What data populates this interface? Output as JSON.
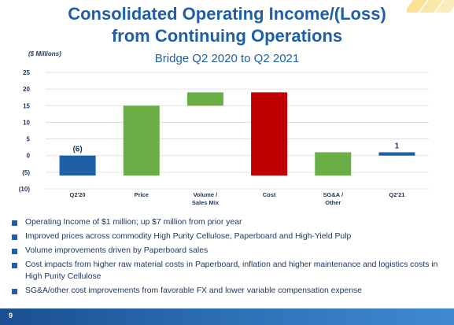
{
  "header": {
    "title_line1": "Consolidated Operating Income/(Loss)",
    "title_line2": "from Continuing Operations",
    "subtitle": "Bridge Q2 2020 to Q2 2021",
    "units": "($ Millions)"
  },
  "chart_data": {
    "type": "bar",
    "subtype": "waterfall",
    "categories": [
      "Q2'20",
      "Price",
      "Volume / Sales Mix",
      "Cost",
      "SG&A / Other",
      "Q2'21"
    ],
    "category_lines": [
      [
        "Q2'20"
      ],
      [
        "Price"
      ],
      [
        "Volume /",
        "Sales Mix"
      ],
      [
        "Cost"
      ],
      [
        "SG&A /",
        "Other"
      ],
      [
        "Q2'21"
      ]
    ],
    "bars": [
      {
        "base": 0,
        "top": -6,
        "color": "#1f5fa6",
        "label": "(6)"
      },
      {
        "base": -6,
        "top": 15,
        "color": "#6aaf45",
        "label": ""
      },
      {
        "base": 15,
        "top": 19,
        "color": "#6aaf45",
        "label": ""
      },
      {
        "base": 19,
        "top": -6,
        "color": "#c00000",
        "label": ""
      },
      {
        "base": -6,
        "top": 1,
        "color": "#6aaf45",
        "label": ""
      },
      {
        "base": 0,
        "top": 1,
        "color": "#1f5fa6",
        "label": "1"
      }
    ],
    "y_ticks": [
      25,
      20,
      15,
      10,
      5,
      0,
      -5,
      -10
    ],
    "y_tick_labels": [
      "25",
      "20",
      "15",
      "10",
      "5",
      "0",
      "(5)",
      "(10)"
    ],
    "ylim": [
      -10,
      25
    ],
    "grid": true
  },
  "bullets": [
    "Operating Income of $1 million; up $7 million from prior year",
    "Improved prices across commodity High Purity Cellulose, Paperboard and High-Yield Pulp",
    "Volume improvements driven by Paperboard sales",
    "Cost impacts from higher raw material costs in Paperboard, inflation and higher maintenance and logistics costs in High Purity Cellulose",
    "SG&A/other cost improvements from favorable FX and lower variable compensation expense"
  ],
  "footer": {
    "page_number": "9"
  }
}
